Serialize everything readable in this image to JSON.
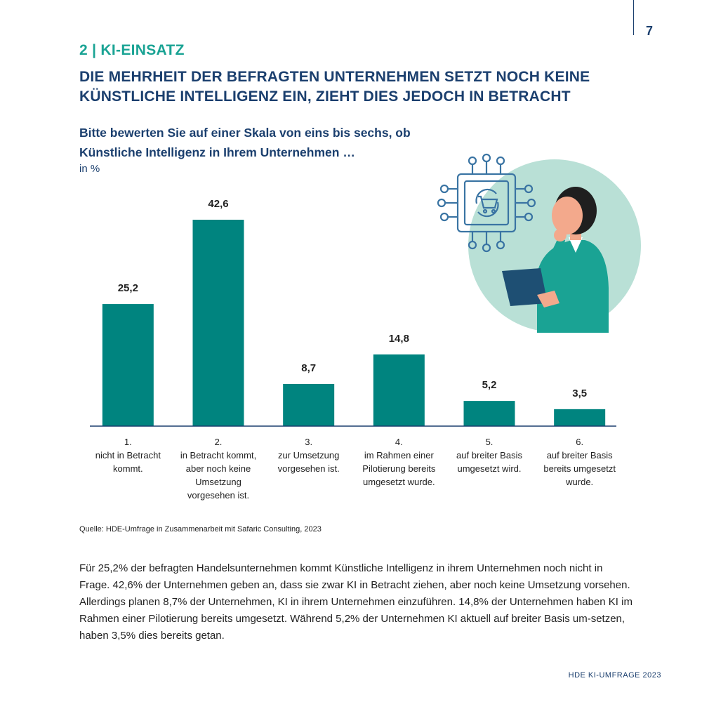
{
  "page": {
    "number": "7",
    "section": "2 | KI-EINSATZ",
    "headline": "Die Mehrheit der befragten Unternehmen setzt noch keine Künstliche Intelligenz ein, zieht dies jedoch in Betracht",
    "question": "Bitte bewerten Sie auf einer Skala von eins bis sechs, ob Künstliche Intelligenz in Ihrem Unternehmen …",
    "unit": "in %",
    "source": "Quelle: HDE-Umfrage in Zusammenarbeit mit Safaric Consulting, 2023",
    "body": "Für 25,2% der befragten Handelsunternehmen kommt Künstliche Intelligenz in ihrem Unternehmen noch nicht in Frage. 42,6% der Unternehmen geben an, dass sie zwar KI in Betracht ziehen, aber noch keine Umsetzung vorsehen. Allerdings planen 8,7% der Unternehmen, KI in ihrem Unternehmen einzuführen. 14,8% der Unternehmen haben KI im Rahmen einer Pilotierung bereits umgesetzt. Während 5,2% der Unternehmen KI aktuell auf breiter Basis um-setzen, haben 3,5% dies bereits getan.",
    "footer": "HDE KI-UMFRAGE 2023"
  },
  "colors": {
    "bar": "#00847f",
    "navy": "#1b3f6e",
    "accent": "#1aa394",
    "circle": "#b9e0d6"
  },
  "illustration": {
    "icons": [
      "chip-icon",
      "shopping-cart-icon",
      "person-icon",
      "tablet-icon"
    ]
  },
  "chart_data": {
    "type": "bar",
    "categories": [
      [
        "1.",
        "nicht in Betracht",
        "kommt."
      ],
      [
        "2.",
        "in Betracht kommt,",
        "aber noch keine",
        "Umsetzung",
        "vorgesehen ist."
      ],
      [
        "3.",
        "zur Umsetzung",
        "vorgesehen ist."
      ],
      [
        "4.",
        "im Rahmen einer",
        "Pilotierung bereits",
        "umgesetzt wurde."
      ],
      [
        "5.",
        "auf breiter Basis",
        "umgesetzt wird."
      ],
      [
        "6.",
        "auf breiter Basis",
        "bereits umgesetzt",
        "wurde."
      ]
    ],
    "values": [
      25.2,
      42.6,
      8.7,
      14.8,
      5.2,
      3.5
    ],
    "value_labels": [
      "25,2",
      "42,6",
      "8,7",
      "14,8",
      "5,2",
      "3,5"
    ],
    "ylim": [
      0,
      42.6
    ],
    "grid": false,
    "legend": "none"
  }
}
